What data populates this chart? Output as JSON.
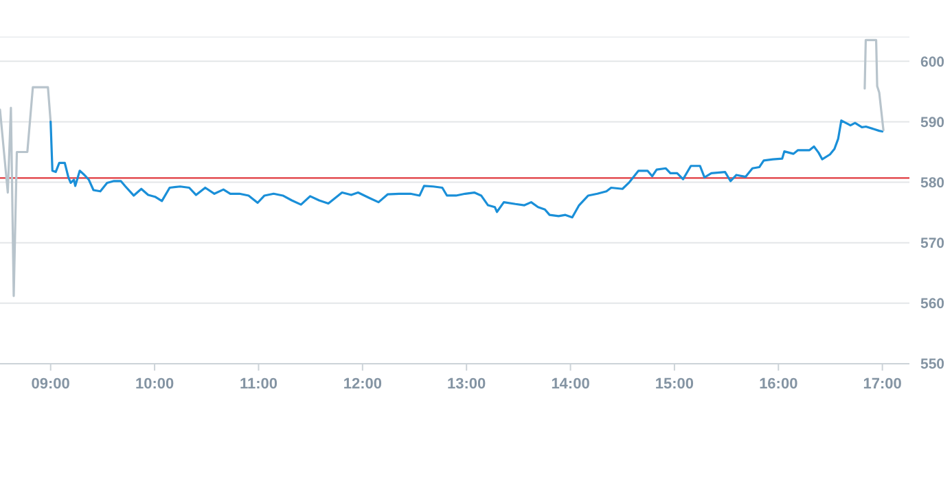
{
  "chart_data": {
    "type": "line",
    "xlim": [
      8.513,
      17.26
    ],
    "ylim": [
      550,
      604
    ],
    "xticks": [
      {
        "value": 9,
        "label": "09:00"
      },
      {
        "value": 10,
        "label": "10:00"
      },
      {
        "value": 11,
        "label": "11:00"
      },
      {
        "value": 12,
        "label": "12:00"
      },
      {
        "value": 13,
        "label": "13:00"
      },
      {
        "value": 14,
        "label": "14:00"
      },
      {
        "value": 15,
        "label": "15:00"
      },
      {
        "value": 16,
        "label": "16:00"
      },
      {
        "value": 17,
        "label": "17:00"
      }
    ],
    "yticks": [
      550,
      560,
      570,
      580,
      590,
      600
    ],
    "grid": "y",
    "marker": "none",
    "line_style": "solid",
    "ref_lines": [
      {
        "axis": "y",
        "value": 580.7,
        "color": "#e0393e"
      }
    ],
    "series": [
      {
        "color": "#b8c4cc",
        "x": [
          8.513,
          8.588,
          8.618,
          8.645,
          8.675,
          8.776,
          8.829,
          8.974,
          9.0
        ],
        "values": [
          592,
          578.3,
          592.3,
          561.2,
          585,
          585,
          595.7,
          595.7,
          590
        ]
      },
      {
        "color": "#1a8fd8",
        "x": [
          9.0,
          9.017,
          9.049,
          9.083,
          9.136,
          9.171,
          9.193,
          9.224,
          9.237,
          9.28,
          9.325,
          9.368,
          9.412,
          9.478,
          9.543,
          9.609,
          9.675,
          9.72,
          9.799,
          9.872,
          9.938,
          10.004,
          10.07,
          10.145,
          10.246,
          10.333,
          10.399,
          10.487,
          10.575,
          10.662,
          10.728,
          10.816,
          10.904,
          10.991,
          11.057,
          11.145,
          11.233,
          11.32,
          11.408,
          11.496,
          11.583,
          11.671,
          11.803,
          11.891,
          11.957,
          12.066,
          12.154,
          12.241,
          12.351,
          12.461,
          12.549,
          12.592,
          12.68,
          12.767,
          12.812,
          12.899,
          12.987,
          13.075,
          13.141,
          13.207,
          13.272,
          13.293,
          13.359,
          13.47,
          13.557,
          13.622,
          13.688,
          13.754,
          13.799,
          13.886,
          13.951,
          14.017,
          14.083,
          14.171,
          14.259,
          14.346,
          14.391,
          14.5,
          14.566,
          14.654,
          14.741,
          14.786,
          14.829,
          14.917,
          14.961,
          15.026,
          15.083,
          15.158,
          15.246,
          15.289,
          15.355,
          15.487,
          15.539,
          15.596,
          15.684,
          15.75,
          15.816,
          15.859,
          15.947,
          16.036,
          16.057,
          16.145,
          16.188,
          16.299,
          16.342,
          16.386,
          16.421,
          16.496,
          16.539,
          16.575,
          16.605,
          16.649,
          16.693,
          16.737,
          16.803,
          16.842,
          16.97,
          17.0
        ],
        "values": [
          590,
          581.9,
          581.7,
          583.2,
          583.2,
          580.8,
          579.9,
          580.4,
          579.4,
          581.9,
          581.2,
          580.4,
          578.7,
          578.5,
          579.9,
          580.2,
          580.2,
          579.3,
          577.8,
          578.9,
          577.9,
          577.6,
          576.9,
          579.1,
          579.3,
          579.1,
          577.9,
          579.1,
          578.1,
          578.8,
          578.1,
          578.1,
          577.8,
          576.6,
          577.8,
          578.1,
          577.8,
          577,
          576.3,
          577.7,
          577,
          576.5,
          578.3,
          577.9,
          578.3,
          577.4,
          576.7,
          578,
          578.1,
          578.1,
          577.8,
          579.4,
          579.3,
          579.1,
          577.8,
          577.8,
          578.1,
          578.3,
          577.8,
          576.2,
          575.9,
          575.1,
          576.7,
          576.4,
          576.2,
          576.7,
          575.9,
          575.5,
          574.6,
          574.4,
          574.6,
          574.2,
          576.2,
          577.8,
          578.1,
          578.5,
          579.1,
          578.9,
          580,
          581.9,
          581.9,
          581,
          582.1,
          582.3,
          581.5,
          581.5,
          580.5,
          582.7,
          582.7,
          580.8,
          581.5,
          581.7,
          580.2,
          581.2,
          580.9,
          582.3,
          582.5,
          583.6,
          583.8,
          583.9,
          585.1,
          584.7,
          585.3,
          585.3,
          585.9,
          584.9,
          583.8,
          584.6,
          585.5,
          587.2,
          590.2,
          589.8,
          589.4,
          589.8,
          589.1,
          589.2,
          588.5,
          588.4
        ]
      },
      {
        "color": "#b8c4cc",
        "x": [
          16.83,
          16.84,
          16.94,
          16.95,
          16.97,
          17.01
        ],
        "values": [
          595.5,
          603.5,
          603.5,
          595.9,
          594.8,
          588.6
        ]
      }
    ]
  }
}
